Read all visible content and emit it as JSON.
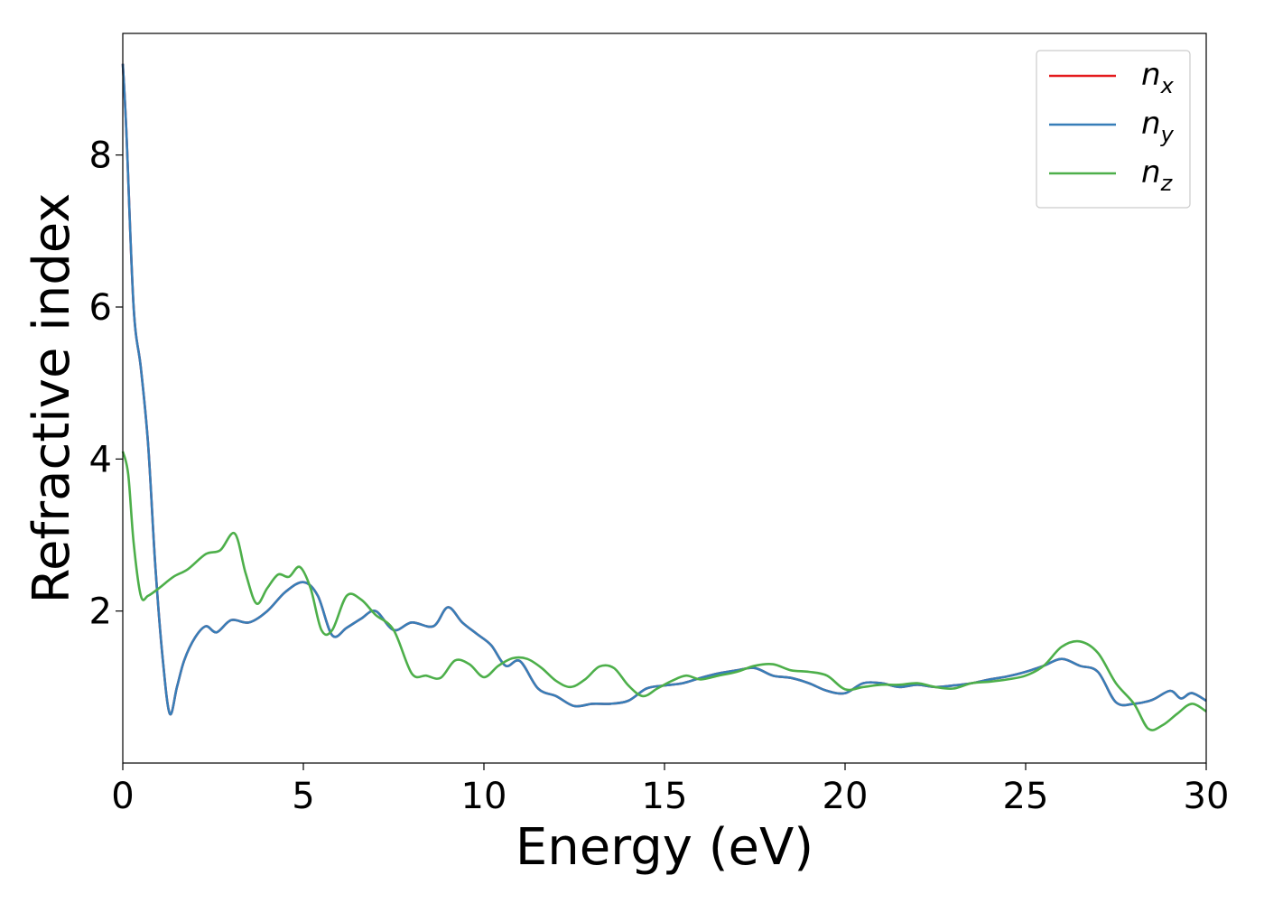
{
  "chart_data": {
    "type": "line",
    "title": "",
    "xlabel": "Energy (eV)",
    "ylabel": "Refractive index",
    "xlim": [
      0,
      30
    ],
    "ylim": [
      0,
      9.6
    ],
    "xticks": [
      0,
      5,
      10,
      15,
      20,
      25,
      30
    ],
    "xtick_labels": [
      "0",
      "5",
      "10",
      "15",
      "20",
      "25",
      "30"
    ],
    "yticks": [
      2,
      4,
      6,
      8
    ],
    "ytick_labels": [
      "2",
      "4",
      "6",
      "8"
    ],
    "grid": false,
    "legend_position": "top-right",
    "series": [
      {
        "name": "n_x",
        "legend_base": "n",
        "legend_sub": "x",
        "color": "#e41a1c",
        "x": [
          0,
          0.1,
          0.3,
          0.5,
          0.7,
          0.9,
          1.1,
          1.3,
          1.5,
          1.7,
          2.0,
          2.3,
          2.6,
          3.0,
          3.5,
          4.0,
          4.5,
          5.0,
          5.4,
          5.8,
          6.2,
          6.6,
          7.0,
          7.5,
          8.0,
          8.6,
          9.0,
          9.4,
          9.8,
          10.2,
          10.6,
          11.0,
          11.5,
          12.0,
          12.5,
          13.0,
          13.5,
          14.0,
          14.5,
          15.0,
          15.5,
          16.0,
          16.5,
          17.0,
          17.5,
          18.0,
          18.5,
          19.0,
          19.5,
          20.0,
          20.5,
          21.0,
          21.5,
          22.0,
          22.5,
          23.0,
          23.5,
          24.0,
          24.5,
          25.0,
          25.5,
          26.0,
          26.5,
          27.0,
          27.5,
          28.0,
          28.5,
          29.0,
          29.3,
          29.6,
          30.0
        ],
        "y": [
          9.2,
          8.3,
          6.0,
          5.2,
          4.2,
          2.6,
          1.4,
          0.65,
          1.0,
          1.35,
          1.65,
          1.8,
          1.72,
          1.88,
          1.85,
          2.0,
          2.25,
          2.38,
          2.2,
          1.68,
          1.78,
          1.9,
          2.0,
          1.75,
          1.85,
          1.8,
          2.05,
          1.85,
          1.7,
          1.55,
          1.28,
          1.34,
          0.98,
          0.88,
          0.75,
          0.78,
          0.78,
          0.82,
          0.98,
          1.02,
          1.05,
          1.12,
          1.18,
          1.22,
          1.25,
          1.15,
          1.12,
          1.05,
          0.95,
          0.92,
          1.05,
          1.05,
          1.0,
          1.03,
          1.0,
          1.02,
          1.05,
          1.1,
          1.14,
          1.2,
          1.28,
          1.37,
          1.28,
          1.2,
          0.8,
          0.78,
          0.83,
          0.95,
          0.85,
          0.92,
          0.82
        ]
      },
      {
        "name": "n_y",
        "legend_base": "n",
        "legend_sub": "y",
        "color": "#377eb8",
        "x": [
          0,
          0.1,
          0.3,
          0.5,
          0.7,
          0.9,
          1.1,
          1.3,
          1.5,
          1.7,
          2.0,
          2.3,
          2.6,
          3.0,
          3.5,
          4.0,
          4.5,
          5.0,
          5.4,
          5.8,
          6.2,
          6.6,
          7.0,
          7.5,
          8.0,
          8.6,
          9.0,
          9.4,
          9.8,
          10.2,
          10.6,
          11.0,
          11.5,
          12.0,
          12.5,
          13.0,
          13.5,
          14.0,
          14.5,
          15.0,
          15.5,
          16.0,
          16.5,
          17.0,
          17.5,
          18.0,
          18.5,
          19.0,
          19.5,
          20.0,
          20.5,
          21.0,
          21.5,
          22.0,
          22.5,
          23.0,
          23.5,
          24.0,
          24.5,
          25.0,
          25.5,
          26.0,
          26.5,
          27.0,
          27.5,
          28.0,
          28.5,
          29.0,
          29.3,
          29.6,
          30.0
        ],
        "y": [
          9.2,
          8.3,
          6.0,
          5.2,
          4.2,
          2.6,
          1.4,
          0.65,
          1.0,
          1.35,
          1.65,
          1.8,
          1.72,
          1.88,
          1.85,
          2.0,
          2.25,
          2.38,
          2.2,
          1.68,
          1.78,
          1.9,
          2.0,
          1.75,
          1.85,
          1.8,
          2.05,
          1.85,
          1.7,
          1.55,
          1.28,
          1.34,
          0.98,
          0.88,
          0.75,
          0.78,
          0.78,
          0.82,
          0.98,
          1.02,
          1.05,
          1.12,
          1.18,
          1.22,
          1.25,
          1.15,
          1.12,
          1.05,
          0.95,
          0.92,
          1.05,
          1.05,
          1.0,
          1.03,
          1.0,
          1.02,
          1.05,
          1.1,
          1.14,
          1.2,
          1.28,
          1.37,
          1.28,
          1.2,
          0.8,
          0.78,
          0.83,
          0.95,
          0.85,
          0.92,
          0.82
        ]
      },
      {
        "name": "n_z",
        "legend_base": "n",
        "legend_sub": "z",
        "color": "#4daf4a",
        "x": [
          0,
          0.15,
          0.3,
          0.5,
          0.7,
          1.0,
          1.4,
          1.8,
          2.3,
          2.7,
          3.1,
          3.4,
          3.7,
          4.0,
          4.3,
          4.6,
          4.9,
          5.2,
          5.5,
          5.8,
          6.2,
          6.6,
          7.0,
          7.5,
          8.0,
          8.4,
          8.8,
          9.2,
          9.6,
          10.0,
          10.4,
          10.8,
          11.2,
          11.6,
          12.0,
          12.4,
          12.8,
          13.2,
          13.6,
          14.0,
          14.4,
          14.8,
          15.2,
          15.6,
          16.0,
          16.5,
          17.0,
          17.5,
          18.0,
          18.5,
          19.0,
          19.5,
          20.0,
          20.5,
          21.0,
          21.5,
          22.0,
          22.5,
          23.0,
          23.5,
          24.0,
          24.5,
          25.0,
          25.5,
          26.0,
          26.5,
          27.0,
          27.5,
          28.0,
          28.4,
          28.8,
          29.2,
          29.6,
          30.0
        ],
        "y": [
          4.1,
          3.8,
          2.9,
          2.2,
          2.2,
          2.3,
          2.45,
          2.55,
          2.75,
          2.8,
          3.02,
          2.5,
          2.1,
          2.3,
          2.48,
          2.45,
          2.58,
          2.3,
          1.75,
          1.75,
          2.2,
          2.15,
          1.95,
          1.75,
          1.18,
          1.15,
          1.12,
          1.35,
          1.3,
          1.13,
          1.28,
          1.38,
          1.37,
          1.25,
          1.08,
          1.0,
          1.1,
          1.27,
          1.25,
          1.02,
          0.88,
          0.98,
          1.08,
          1.15,
          1.1,
          1.15,
          1.2,
          1.28,
          1.3,
          1.22,
          1.2,
          1.15,
          0.97,
          1.0,
          1.03,
          1.03,
          1.05,
          1.0,
          0.98,
          1.05,
          1.07,
          1.1,
          1.15,
          1.28,
          1.53,
          1.6,
          1.45,
          1.05,
          0.78,
          0.45,
          0.5,
          0.65,
          0.78,
          0.68
        ]
      }
    ]
  }
}
